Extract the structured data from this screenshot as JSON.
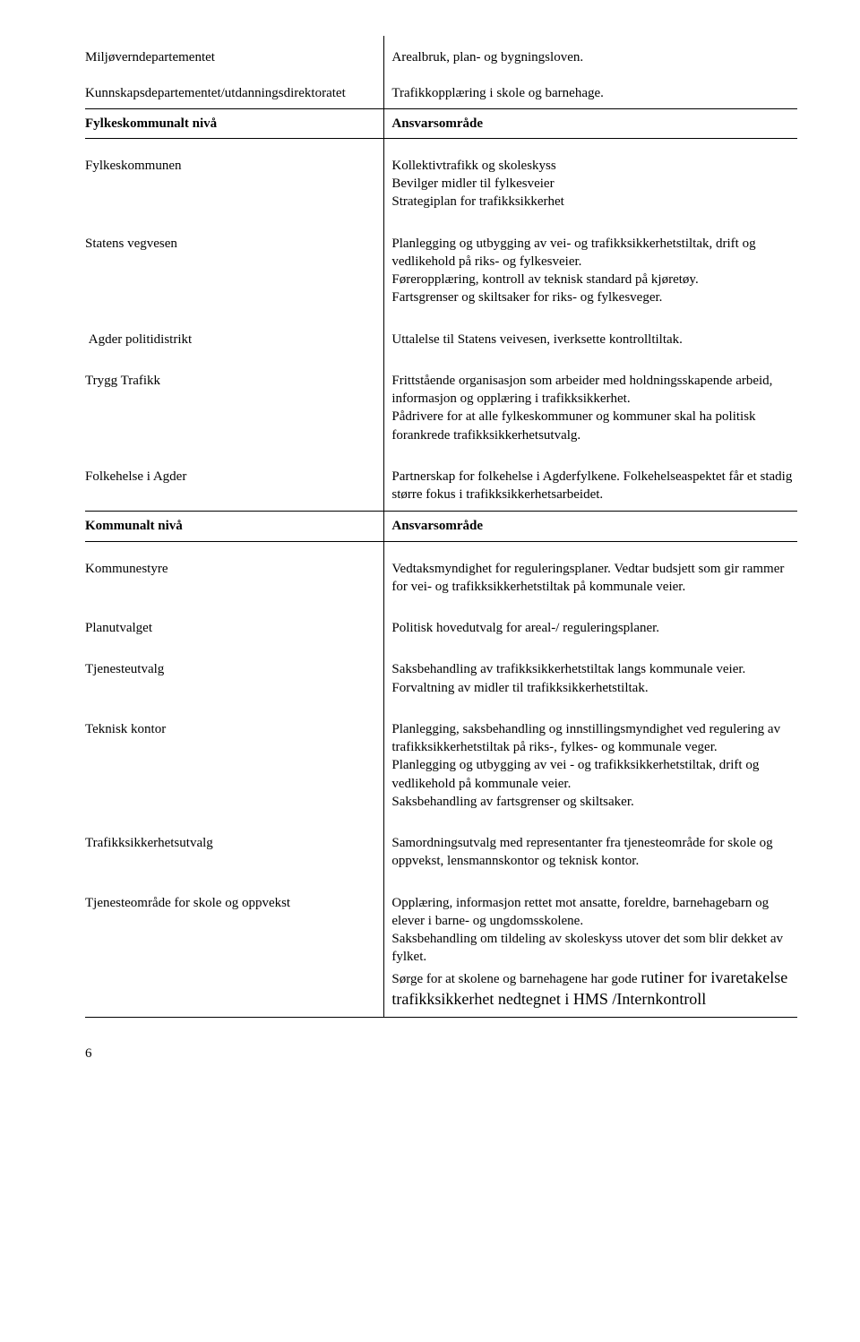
{
  "nationalRows": [
    {
      "left": "Miljøverndepartementet",
      "right": "Arealbruk, plan- og bygningsloven."
    },
    {
      "left": "Kunnskapsdepartementet/utdanningsdirektoratet",
      "right": "Trafikkopplæring i skole og barnehage."
    }
  ],
  "fylkes": {
    "header": {
      "left": "Fylkeskommunalt nivå",
      "right": "Ansvarsområde"
    },
    "rows": [
      {
        "left": "Fylkeskommunen",
        "paras": [
          "Kollektivtrafikk og skoleskyss",
          "Bevilger midler til fylkesveier",
          "Strategiplan for trafikksikkerhet"
        ]
      },
      {
        "left": "Statens vegvesen",
        "paras": [
          "Planlegging og utbygging av vei- og trafikksikkerhetstiltak, drift og vedlikehold på riks- og fylkesveier.",
          "Føreropplæring, kontroll av teknisk standard på kjøretøy.",
          "Fartsgrenser og skiltsaker for riks- og fylkesveger."
        ]
      },
      {
        "left": "Agder politidistrikt",
        "paras": [
          "Uttalelse til Statens veivesen, iverksette kontrolltiltak."
        ]
      },
      {
        "left": "Trygg Trafikk",
        "paras": [
          "Frittstående organisasjon som arbeider med holdningsskapende arbeid, informasjon og opplæring i trafikksikkerhet.",
          "Pådrivere for at alle fylkeskommuner og kommuner skal ha politisk forankrede trafikksikkerhetsutvalg."
        ]
      },
      {
        "left": "Folkehelse i Agder",
        "paras": [
          "Partnerskap for folkehelse i Agderfylkene. Folkehelseaspektet får et stadig større fokus i trafikksikkerhetsarbeidet."
        ]
      }
    ]
  },
  "kommunalt": {
    "header": {
      "left": "Kommunalt nivå",
      "right": "Ansvarsområde"
    },
    "rows": [
      {
        "left": "Kommunestyre",
        "paras": [
          "Vedtaksmyndighet for reguleringsplaner. Vedtar budsjett som gir rammer for vei- og trafikksikkerhetstiltak på kommunale veier."
        ]
      },
      {
        "left": "Planutvalget",
        "paras": [
          "Politisk hovedutvalg for areal-/ reguleringsplaner."
        ]
      },
      {
        "left": "Tjenesteutvalg",
        "paras": [
          "Saksbehandling av trafikksikkerhetstiltak langs kommunale veier.",
          "Forvaltning av midler til trafikksikkerhetstiltak."
        ]
      },
      {
        "left": "Teknisk kontor",
        "paras": [
          "Planlegging, saksbehandling og innstillingsmyndighet ved regulering av trafikksikkerhetstiltak på riks-, fylkes- og kommunale veger.",
          "Planlegging og utbygging av vei - og trafikksikkerhetstiltak, drift og vedlikehold på kommunale veier.",
          "Saksbehandling av fartsgrenser og skiltsaker."
        ]
      },
      {
        "left": "Trafikksikkerhetsutvalg",
        "paras": [
          "Samordningsutvalg med representanter fra tjenesteområde for skole og oppvekst, lensmannskontor og teknisk kontor."
        ]
      },
      {
        "left": "Tjenesteområde for skole og oppvekst",
        "paras": [
          "Opplæring, informasjon rettet mot ansatte, foreldre, barnehagebarn og elever i barne- og ungdomsskolene.",
          "Saksbehandling om tildeling av skoleskyss utover det som blir dekket av fylket."
        ],
        "mixed": {
          "pre": "Sørge for at skolene og barnehagene har gode ",
          "big": "rutiner for",
          "post": " ivaretakelse trafikksikkerhet nedtegnet i HMS /Internkontroll"
        }
      }
    ]
  },
  "footer": "6"
}
